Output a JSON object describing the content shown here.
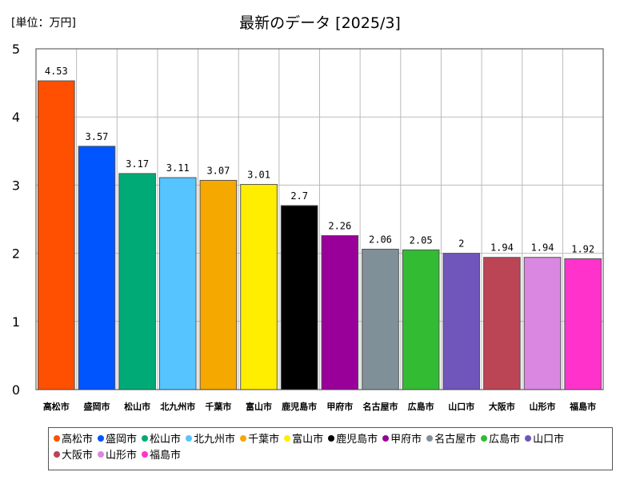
{
  "chart_data": {
    "type": "bar",
    "title": "最新のデータ [2025/3]",
    "unit_label": "[単位：万円]",
    "xlabel": "",
    "ylabel": "",
    "ylim": [
      0,
      5
    ],
    "yticks": [
      "0",
      "1",
      "2",
      "3",
      "4",
      "5"
    ],
    "grid": true,
    "legend_position": "bottom",
    "categories": [
      "高松市",
      "盛岡市",
      "松山市",
      "北九州市",
      "千葉市",
      "富山市",
      "鹿児島市",
      "甲府市",
      "名古屋市",
      "広島市",
      "山口市",
      "大阪市",
      "山形市",
      "福島市"
    ],
    "values": [
      4.53,
      3.57,
      3.17,
      3.11,
      3.07,
      3.01,
      2.7,
      2.26,
      2.06,
      2.05,
      2,
      1.94,
      1.94,
      1.92
    ],
    "value_labels": [
      "4.53",
      "3.57",
      "3.17",
      "3.11",
      "3.07",
      "3.01",
      "2.7",
      "2.26",
      "2.06",
      "2.05",
      "2",
      "1.94",
      "1.94",
      "1.92"
    ],
    "colors": [
      "#ff4f00",
      "#0055ff",
      "#00aa77",
      "#55c4ff",
      "#f5a800",
      "#ffee00",
      "#000000",
      "#990099",
      "#809099",
      "#33bb33",
      "#7055bb",
      "#bb4455",
      "#d987e0",
      "#ff33cc"
    ]
  }
}
